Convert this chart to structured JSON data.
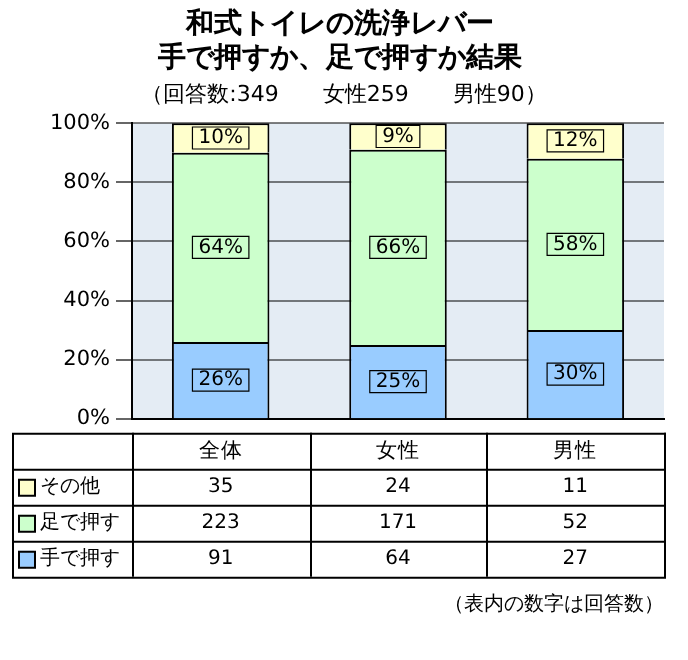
{
  "chart_data": {
    "type": "bar",
    "stacked": true,
    "title": "和式トイレの洗浄レバー",
    "subtitle": "手で押すか、足で押すか結果",
    "categories": [
      "全体",
      "女性",
      "男性"
    ],
    "series": [
      {
        "name": "手で押す",
        "color": "#99ccff",
        "values": [
          26,
          25,
          30
        ],
        "value_labels": [
          "26%",
          "25%",
          "30%"
        ]
      },
      {
        "name": "足で押す",
        "color": "#ccffcc",
        "values": [
          64,
          66,
          58
        ],
        "value_labels": [
          "64%",
          "66%",
          "58%"
        ]
      },
      {
        "name": "その他",
        "color": "#ffffcc",
        "values": [
          10,
          9,
          12
        ],
        "value_labels": [
          "10%",
          "9%",
          "12%"
        ]
      }
    ],
    "ylim": [
      0,
      100
    ],
    "yticks": [
      {
        "value": 0,
        "label": "0%"
      },
      {
        "value": 20,
        "label": "20%"
      },
      {
        "value": 40,
        "label": "40%"
      },
      {
        "value": 60,
        "label": "60%"
      },
      {
        "value": 80,
        "label": "80%"
      },
      {
        "value": 100,
        "label": "100%"
      }
    ],
    "grid": "y",
    "legend": "bottom left",
    "annotations": [
      "（回答数:349　　女性259　　男性90）",
      "35",
      "24",
      "11",
      "223",
      "171",
      "52",
      "91",
      "64",
      "27",
      "（表内の数字は回答数）"
    ]
  }
}
